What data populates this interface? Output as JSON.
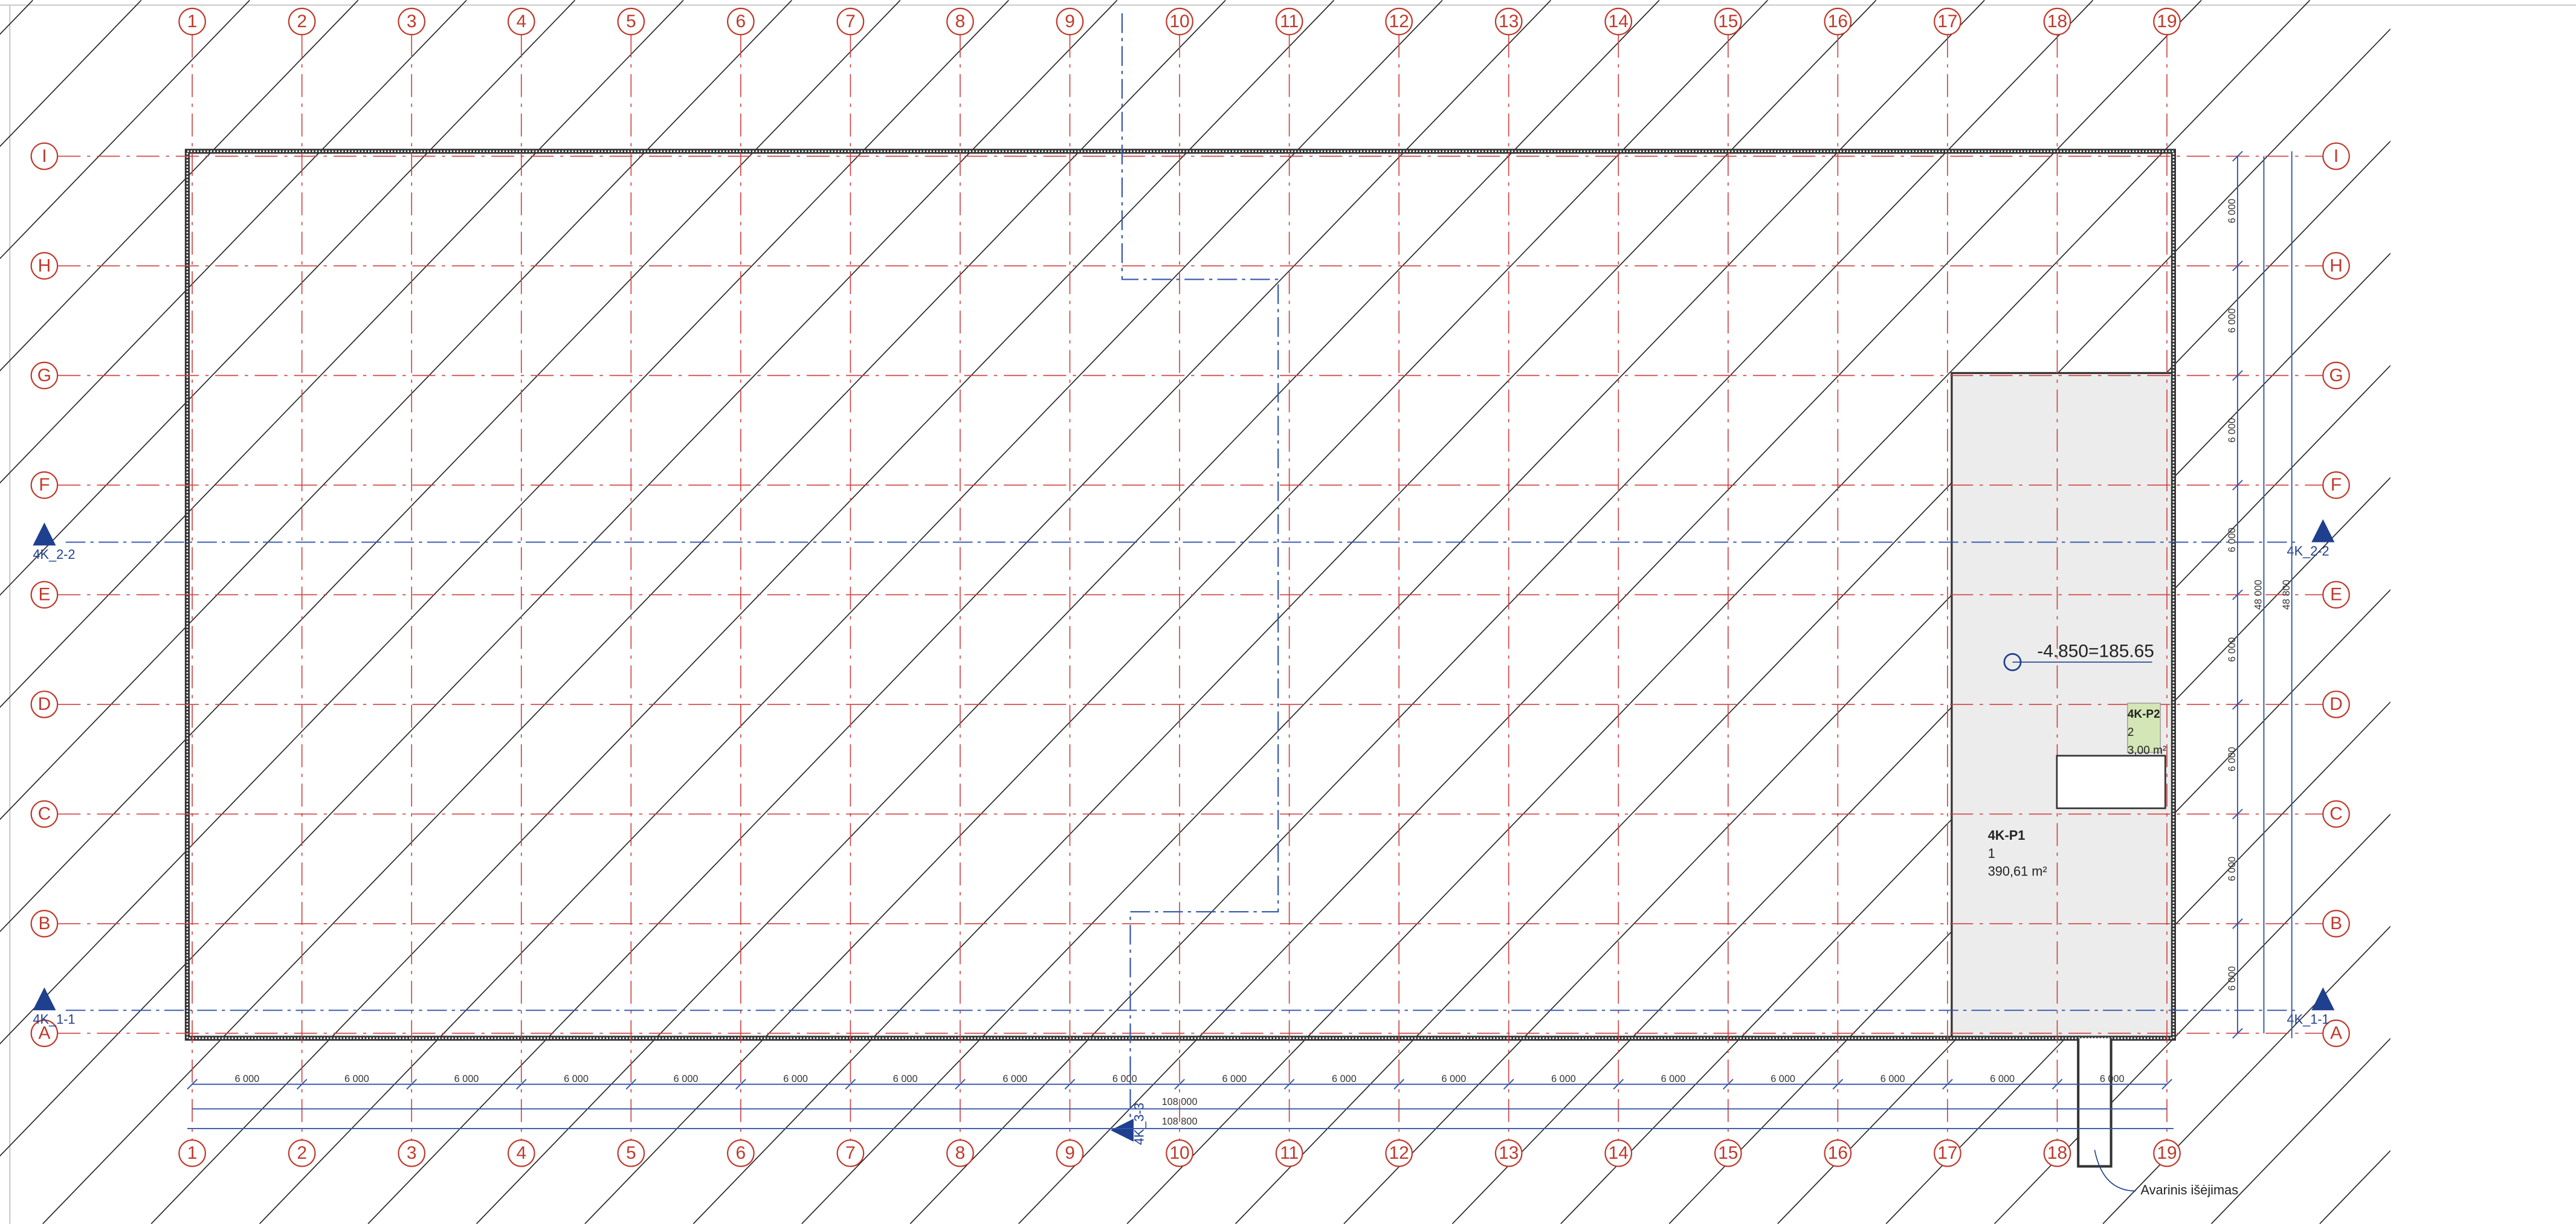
{
  "grid": {
    "columns": [
      "1",
      "2",
      "3",
      "4",
      "5",
      "6",
      "7",
      "8",
      "9",
      "10",
      "11",
      "12",
      "13",
      "14",
      "15",
      "16",
      "17",
      "18",
      "19"
    ],
    "rows": [
      "I",
      "H",
      "G",
      "F",
      "E",
      "D",
      "C",
      "B",
      "A"
    ]
  },
  "dimensions": {
    "horizontal": [
      "6 000",
      "6 000",
      "6 000",
      "6 000",
      "6 000",
      "6 000",
      "6 000",
      "6 000",
      "6 000",
      "6 000",
      "6 000",
      "6 000",
      "6 000",
      "6 000",
      "6 000",
      "6 000",
      "6 000",
      "6 000"
    ],
    "total_inner": "108 000",
    "total_outer": "108 800",
    "vertical": [
      "6 000",
      "6 000",
      "6 000",
      "6 000",
      "6 000",
      "6 000",
      "6 000",
      "6 000"
    ],
    "vertical_inner": "48 000",
    "vertical_outer": "48 800"
  },
  "sections": {
    "section_2_2": "4K_2-2",
    "section_1_1": "4K_1-1",
    "section_3_3": "4K_3-3"
  },
  "elevation": "-4.850=185.65",
  "rooms": [
    {
      "code": "4K-P1",
      "number": "1",
      "area": "390,61 m²"
    },
    {
      "code": "4K-P2",
      "number": "2",
      "area": "3,00 m²"
    }
  ],
  "exit_label": "Avarinis išėjimas"
}
